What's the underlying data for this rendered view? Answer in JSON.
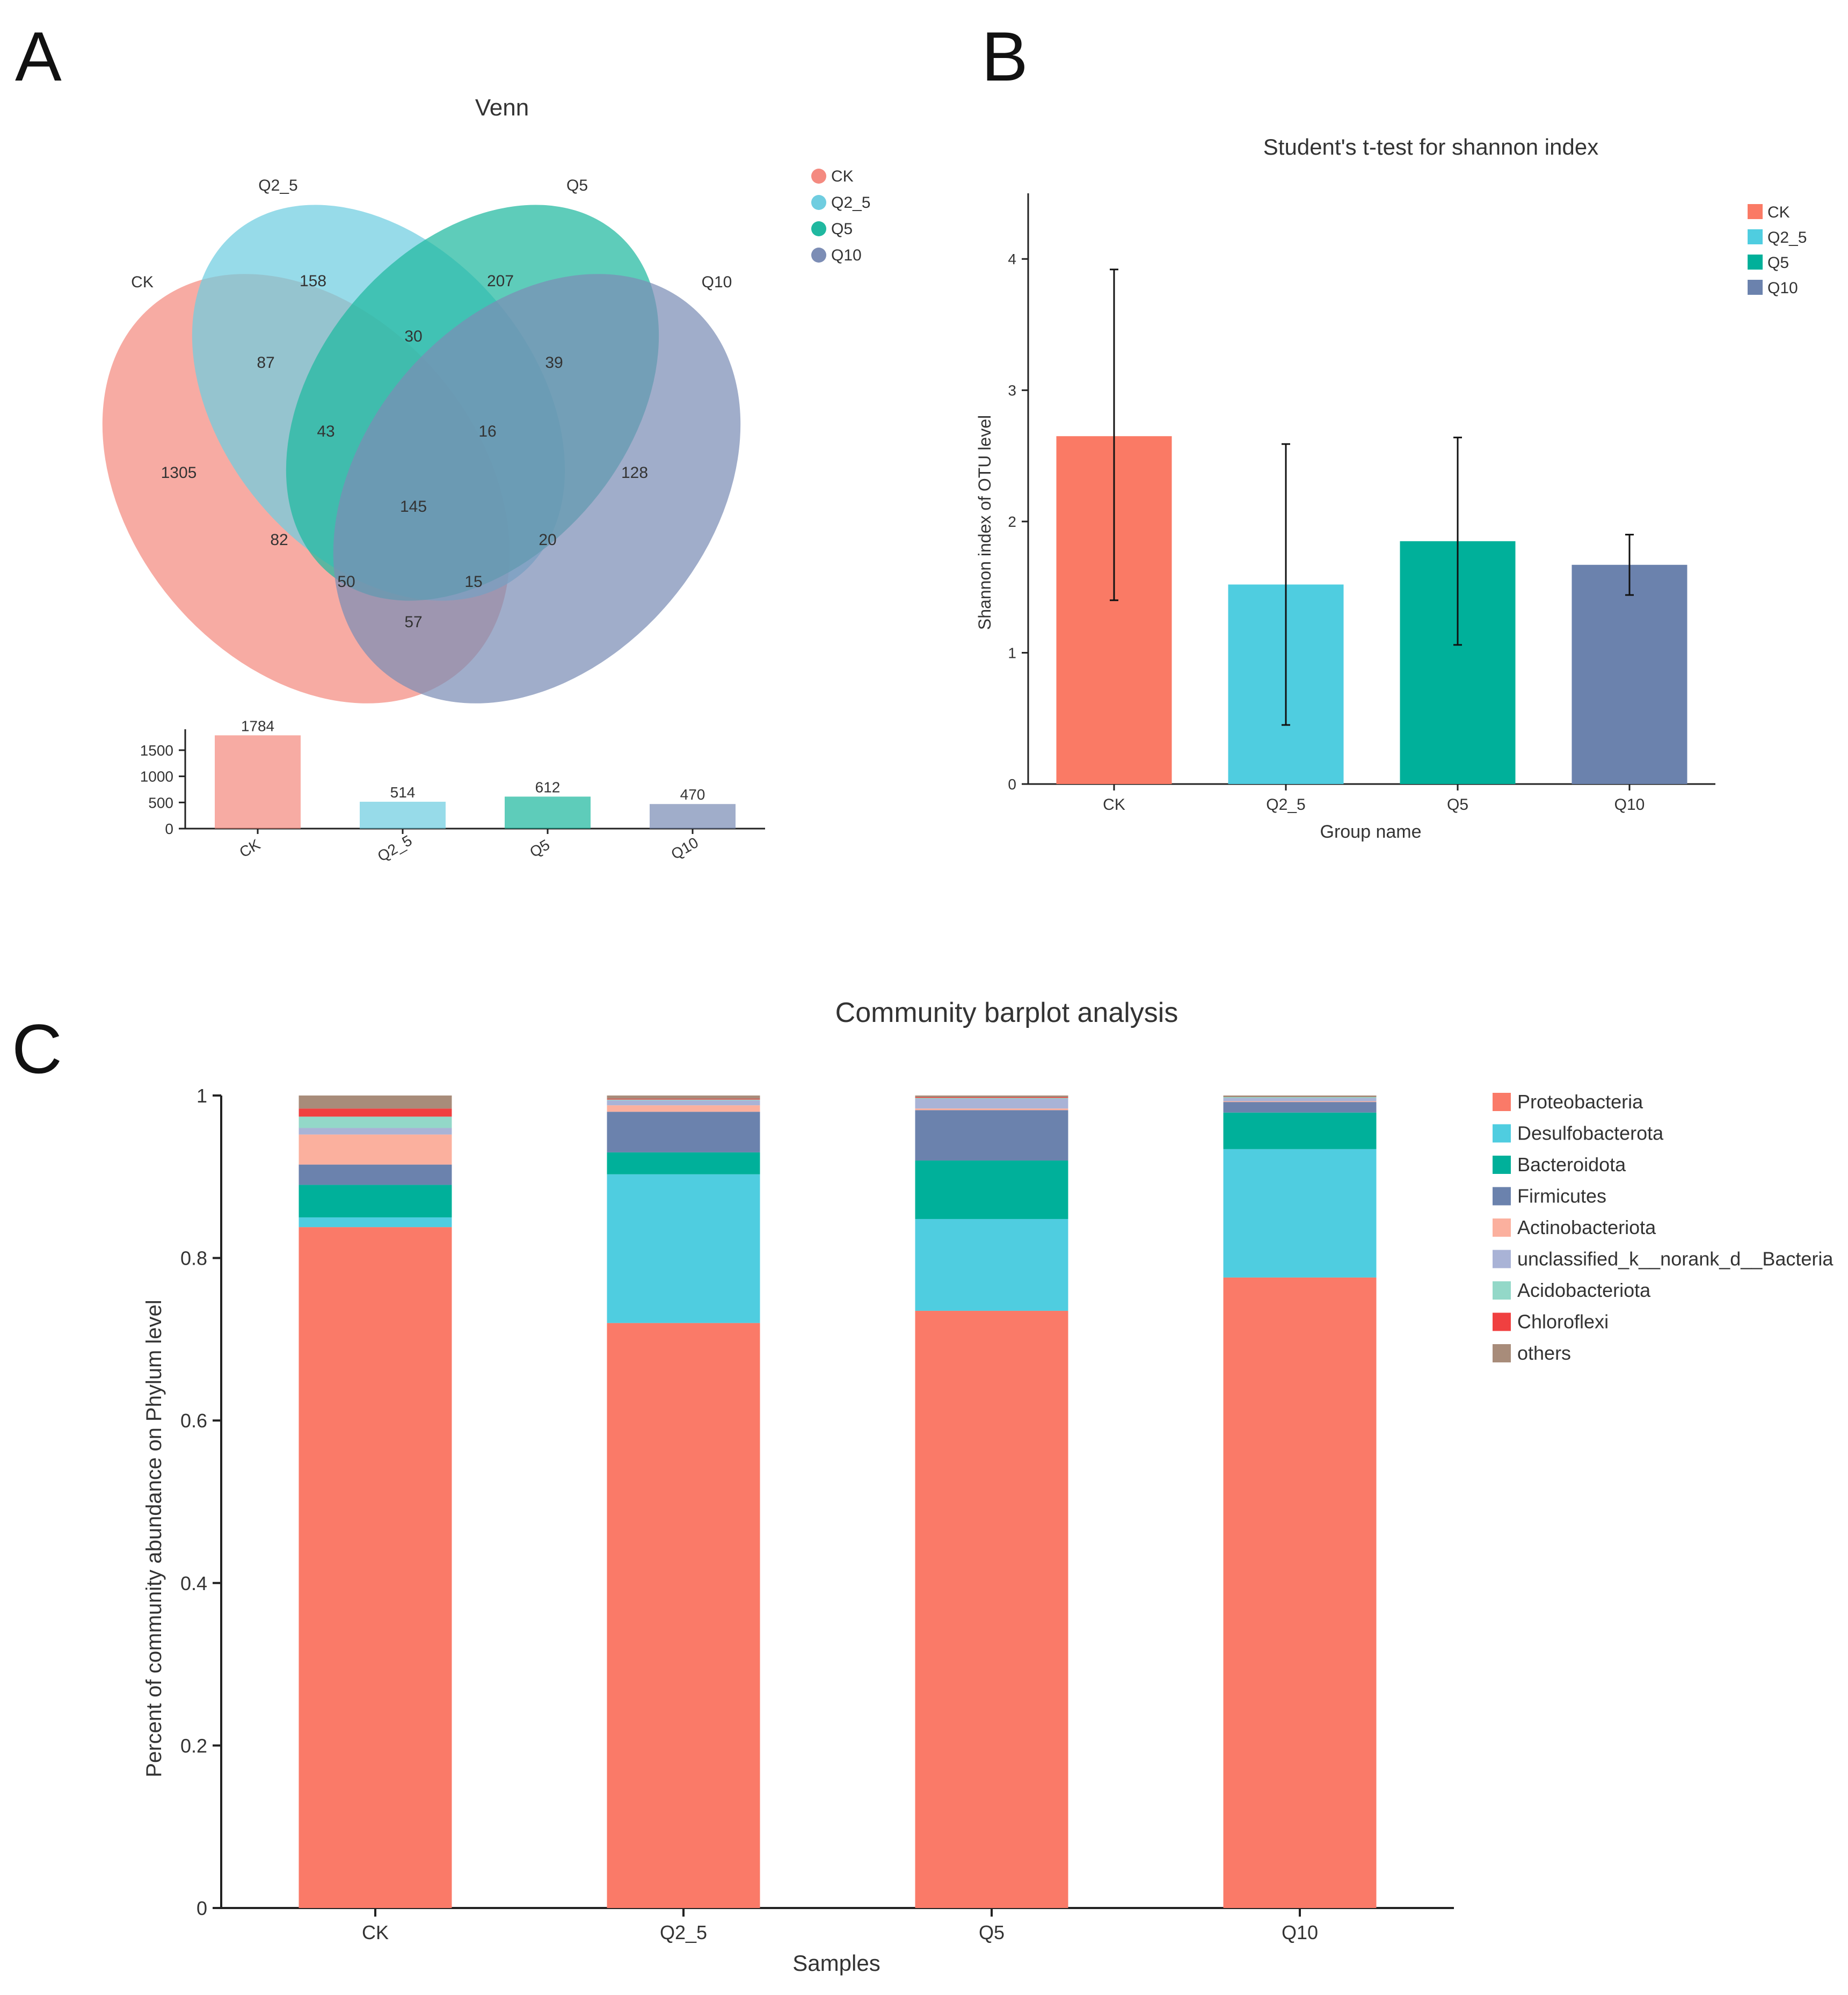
{
  "panels": {
    "a_letter": "A",
    "b_letter": "B",
    "c_letter": "C"
  },
  "chart_data": [
    {
      "type": "venn",
      "title": "Venn",
      "sets": [
        "CK",
        "Q2_5",
        "Q5",
        "Q10"
      ],
      "colors": [
        "#f48a80",
        "#6fcde0",
        "#20b8a0",
        "#7c8db5"
      ],
      "legend": [
        "CK",
        "Q2_5",
        "Q5",
        "Q10"
      ],
      "regions": [
        {
          "sets": [
            "CK"
          ],
          "value": 1305
        },
        {
          "sets": [
            "Q2_5"
          ],
          "value": 158
        },
        {
          "sets": [
            "Q5"
          ],
          "value": 207
        },
        {
          "sets": [
            "Q10"
          ],
          "value": 128
        },
        {
          "sets": [
            "CK",
            "Q2_5"
          ],
          "value": 87
        },
        {
          "sets": [
            "Q2_5",
            "Q5"
          ],
          "value": 30
        },
        {
          "sets": [
            "Q5",
            "Q10"
          ],
          "value": 39
        },
        {
          "sets": [
            "CK",
            "Q2_5",
            "Q5"
          ],
          "value": 43
        },
        {
          "sets": [
            "Q2_5",
            "Q5",
            "Q10"
          ],
          "value": 16
        },
        {
          "sets": [
            "CK",
            "Q2_5",
            "Q5",
            "Q10"
          ],
          "value": 145
        },
        {
          "sets": [
            "CK",
            "Q5"
          ],
          "value": 82
        },
        {
          "sets": [
            "Q2_5",
            "Q10"
          ],
          "value": 20
        },
        {
          "sets": [
            "CK",
            "Q5",
            "Q10"
          ],
          "value": 50
        },
        {
          "sets": [
            "CK",
            "Q2_5",
            "Q10"
          ],
          "value": 15
        },
        {
          "sets": [
            "CK",
            "Q10"
          ],
          "value": 57
        }
      ],
      "set_totals": {
        "type": "bar",
        "categories": [
          "CK",
          "Q2_5",
          "Q5",
          "Q10"
        ],
        "values": [
          1784,
          514,
          612,
          470
        ],
        "yticks": [
          0,
          500,
          1000,
          1500
        ],
        "ylim": [
          0,
          1900
        ]
      }
    },
    {
      "type": "bar",
      "title": "Student's t-test for shannon index",
      "xlabel": "Group name",
      "ylabel": "Shannon index of OTU level",
      "categories": [
        "CK",
        "Q2_5",
        "Q5",
        "Q10"
      ],
      "values": [
        2.65,
        1.52,
        1.85,
        1.67
      ],
      "error_low": [
        1.4,
        0.45,
        1.06,
        1.44
      ],
      "error_high": [
        3.92,
        2.59,
        2.64,
        1.9
      ],
      "colors": [
        "#fa7a65",
        "#4fcde0",
        "#00b09a",
        "#6b82ad"
      ],
      "yticks": [
        0,
        1,
        2,
        3,
        4
      ],
      "ylim": [
        0,
        4.5
      ],
      "legend": [
        "CK",
        "Q2_5",
        "Q5",
        "Q10"
      ]
    },
    {
      "type": "stacked_bar",
      "title": "Community barplot analysis",
      "xlabel": "Samples",
      "ylabel": "Percent of community abundance on Phylum level",
      "categories": [
        "CK",
        "Q2_5",
        "Q5",
        "Q10"
      ],
      "yticks": [
        "0",
        "0.2",
        "0.4",
        "0.6",
        "0.8",
        "1"
      ],
      "ylim": [
        0,
        1
      ],
      "series": [
        {
          "name": "Proteobacteria",
          "color": "#fa7a68",
          "values": [
            0.838,
            0.72,
            0.735,
            0.776
          ]
        },
        {
          "name": "Desulfobacterota",
          "color": "#4fcde0",
          "values": [
            0.012,
            0.183,
            0.113,
            0.158
          ]
        },
        {
          "name": "Bacteroidota",
          "color": "#00b09a",
          "values": [
            0.04,
            0.027,
            0.072,
            0.045
          ]
        },
        {
          "name": "Firmicutes",
          "color": "#6b82ad",
          "values": [
            0.025,
            0.05,
            0.062,
            0.013
          ]
        },
        {
          "name": "Actinobacteriota",
          "color": "#fbb09e",
          "values": [
            0.037,
            0.008,
            0.002,
            0.001
          ]
        },
        {
          "name": "unclassified_k__norank_d__Bacteria",
          "color": "#a9b3d6",
          "values": [
            0.008,
            0.006,
            0.012,
            0.004
          ]
        },
        {
          "name": "Acidobacteriota",
          "color": "#93d8c8",
          "values": [
            0.014,
            0.001,
            0.001,
            0.001
          ]
        },
        {
          "name": "Chloroflexi",
          "color": "#f04040",
          "values": [
            0.01,
            0.001,
            0.001,
            0.0
          ]
        },
        {
          "name": "others",
          "color": "#a88c7a",
          "values": [
            0.016,
            0.004,
            0.002,
            0.002
          ]
        }
      ]
    }
  ]
}
